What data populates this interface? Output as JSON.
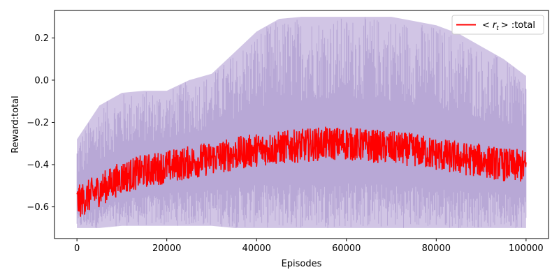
{
  "chart_data": {
    "type": "line",
    "xlabel": "Episodes",
    "ylabel": "Reward:total",
    "xlim": [
      -5000,
      105000
    ],
    "ylim": [
      -0.75,
      0.33
    ],
    "x_ticks": [
      0,
      20000,
      40000,
      60000,
      80000,
      100000
    ],
    "x_tick_labels": [
      "0",
      "20000",
      "40000",
      "60000",
      "80000",
      "100000"
    ],
    "y_ticks": [
      -0.6,
      -0.4,
      -0.2,
      0.0,
      0.2
    ],
    "y_tick_labels": [
      "−0.6",
      "−0.4",
      "−0.2",
      "0.0",
      "0.2"
    ],
    "grid": false,
    "legend_position": "top-right",
    "legend_label_prefix": "<",
    "legend_label_var": "r",
    "legend_label_sub": "t",
    "legend_label_suffix": "> :total",
    "colors": {
      "mean": "#ff0000",
      "band": "#a48fca",
      "band_fill": "#c9bbe0"
    },
    "band_x": [
      0,
      5000,
      10000,
      15000,
      20000,
      25000,
      30000,
      35000,
      40000,
      45000,
      50000,
      55000,
      60000,
      65000,
      70000,
      75000,
      80000,
      85000,
      90000,
      95000,
      100000
    ],
    "band_upper": [
      -0.28,
      -0.12,
      -0.06,
      -0.05,
      -0.05,
      0.0,
      0.03,
      0.13,
      0.23,
      0.29,
      0.3,
      0.3,
      0.3,
      0.3,
      0.3,
      0.28,
      0.26,
      0.22,
      0.16,
      0.1,
      0.02
    ],
    "band_lower": [
      -0.7,
      -0.7,
      -0.69,
      -0.69,
      -0.69,
      -0.69,
      -0.69,
      -0.7,
      -0.7,
      -0.7,
      -0.7,
      -0.7,
      -0.7,
      -0.7,
      -0.7,
      -0.7,
      -0.7,
      -0.7,
      -0.7,
      -0.7,
      -0.7
    ],
    "series": [
      {
        "name": "<r_t> :total",
        "x": [
          0,
          5000,
          10000,
          15000,
          20000,
          25000,
          30000,
          35000,
          40000,
          45000,
          50000,
          55000,
          60000,
          65000,
          70000,
          75000,
          80000,
          85000,
          90000,
          95000,
          100000
        ],
        "values": [
          -0.58,
          -0.52,
          -0.46,
          -0.43,
          -0.41,
          -0.39,
          -0.37,
          -0.35,
          -0.33,
          -0.32,
          -0.31,
          -0.3,
          -0.3,
          -0.31,
          -0.32,
          -0.33,
          -0.35,
          -0.37,
          -0.38,
          -0.4,
          -0.41
        ]
      }
    ]
  }
}
